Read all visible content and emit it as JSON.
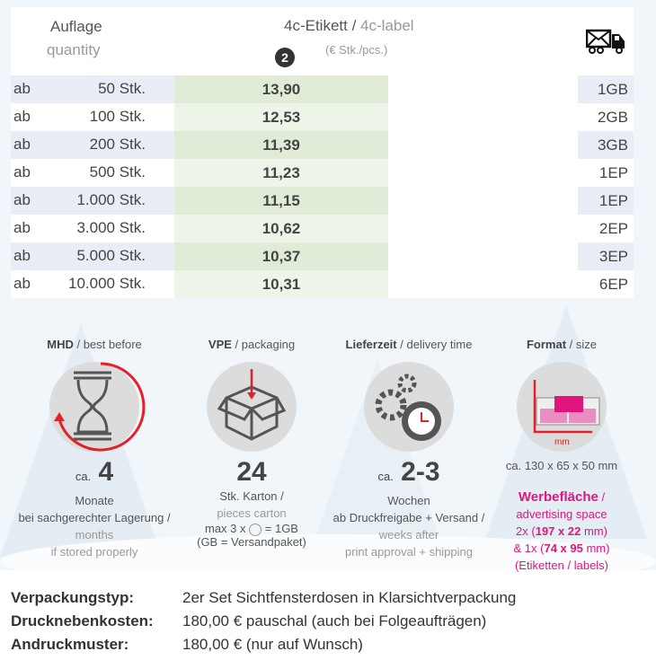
{
  "table": {
    "qty_label": "Auflage",
    "qty_label_en": "quantity",
    "product_label": "4c-Etikett",
    "product_label_en": "4c-label",
    "unit": "(€ Stk./pcs.)",
    "badge": "2",
    "shipping_icon": "mail-truck-icon",
    "rows": [
      {
        "prefix": "ab",
        "qty": "50 Stk.",
        "price": "13,90",
        "ship": "1GB"
      },
      {
        "prefix": "ab",
        "qty": "100 Stk.",
        "price": "12,53",
        "ship": "2GB"
      },
      {
        "prefix": "ab",
        "qty": "200 Stk.",
        "price": "11,39",
        "ship": "3GB"
      },
      {
        "prefix": "ab",
        "qty": "500 Stk.",
        "price": "11,23",
        "ship": "1EP"
      },
      {
        "prefix": "ab",
        "qty": "1.000 Stk.",
        "price": "11,15",
        "ship": "1EP"
      },
      {
        "prefix": "ab",
        "qty": "3.000 Stk.",
        "price": "10,62",
        "ship": "2EP"
      },
      {
        "prefix": "ab",
        "qty": "5.000 Stk.",
        "price": "10,37",
        "ship": "3EP"
      },
      {
        "prefix": "ab",
        "qty": "10.000 Stk.",
        "price": "10,31",
        "ship": "6EP"
      }
    ]
  },
  "info": {
    "mhd": {
      "title": "MHD",
      "title_en": "best before",
      "ca": "ca.",
      "value": "4",
      "l1": "Monate",
      "l2": "bei sachgerechter Lagerung /",
      "l3": "months",
      "l4": "if stored properly"
    },
    "vpe": {
      "title": "VPE",
      "title_en": "packaging",
      "value": "24",
      "l1": "Stk. Karton /",
      "l2": "pieces carton",
      "l3a": "max 3 x",
      "l3b": "= 1GB",
      "l4": "(GB = Versandpaket)"
    },
    "lief": {
      "title": "Lieferzeit",
      "title_en": "delivery time",
      "ca": "ca.",
      "value": "2-3",
      "l1": "Wochen",
      "l2": "ab Druckfreigabe + Versand /",
      "l3": "weeks after",
      "l4": "print approval + shipping"
    },
    "format": {
      "title": "Format",
      "title_en": "size",
      "mm": "mm",
      "dims": "ca. 130 x 65 x 50 mm",
      "adv": "Werbefläche",
      "adv_en": "advertising space",
      "s1a": "2x (",
      "s1b": "197 x 22",
      "s1c": " mm)",
      "s2a": "& 1x (",
      "s2b": "74 x 95",
      "s2c": " mm)",
      "s3": "(Etiketten / labels)"
    }
  },
  "footer": [
    {
      "label": "Verpackungstyp:",
      "value": "2er Set Sichtfensterdosen in Klarsichtverpackung"
    },
    {
      "label": "Drucknebenkosten:",
      "value": "180,00 € pauschal (auch bei Folgeaufträgen)"
    },
    {
      "label": "Andruckmuster:",
      "value": "180,00 € (nur auf Wunsch)"
    }
  ],
  "colors": {
    "green_dark": "#e0ecd8",
    "green_light": "#edf5e9",
    "blue": "#e9eef6",
    "red": "#e3212b",
    "pink": "#e0157f"
  }
}
